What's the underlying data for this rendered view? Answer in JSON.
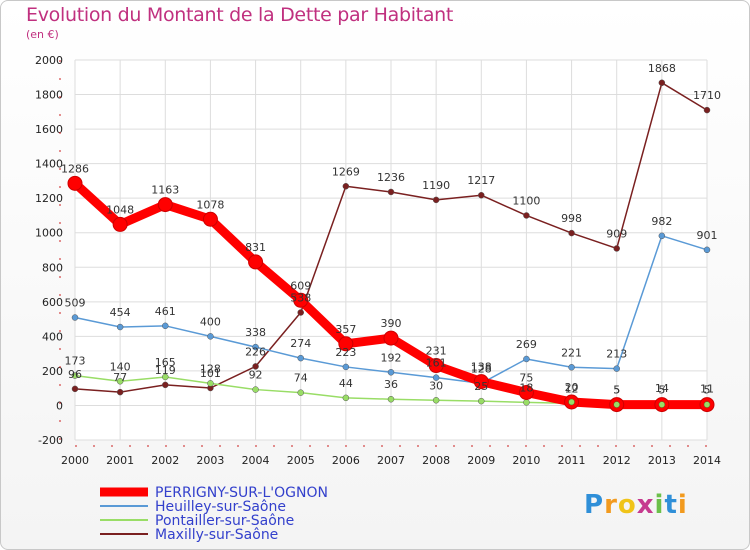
{
  "title": "Evolution du Montant de la Dette par Habitant",
  "unit": "(en €)",
  "logo": "Proxiti",
  "chart_data": {
    "type": "line",
    "title": "Evolution du Montant de la Dette par Habitant",
    "ylabel": "(en €)",
    "x": [
      2000,
      2001,
      2002,
      2003,
      2004,
      2005,
      2006,
      2007,
      2008,
      2009,
      2010,
      2011,
      2012,
      2013,
      2014
    ],
    "ylim": [
      -200,
      2000
    ],
    "yticks": [
      -200,
      0,
      200,
      400,
      600,
      800,
      1000,
      1200,
      1400,
      1600,
      1800,
      2000
    ],
    "grid": true,
    "legend": "bottom-left",
    "series": [
      {
        "name": "PERRIGNY-SUR-L'OGNON",
        "color": "#ff0000",
        "values": [
          1286,
          1048,
          1163,
          1078,
          831,
          609,
          357,
          390,
          231,
          138,
          75,
          20,
          5,
          5,
          5
        ]
      },
      {
        "name": "Heuilley-sur-Saône",
        "color": "#5a9ad6",
        "values": [
          509,
          454,
          461,
          400,
          338,
          274,
          223,
          192,
          161,
          128,
          269,
          221,
          213,
          982,
          901
        ]
      },
      {
        "name": "Pontailler-sur-Saône",
        "color": "#99dd66",
        "values": [
          173,
          140,
          165,
          128,
          92,
          74,
          44,
          36,
          30,
          25,
          18,
          12,
          5,
          14,
          11
        ]
      },
      {
        "name": "Maxilly-sur-Saône",
        "color": "#7a2020",
        "values": [
          96,
          77,
          119,
          101,
          226,
          538,
          1269,
          1236,
          1190,
          1217,
          1100,
          998,
          909,
          1868,
          1710
        ]
      }
    ]
  }
}
